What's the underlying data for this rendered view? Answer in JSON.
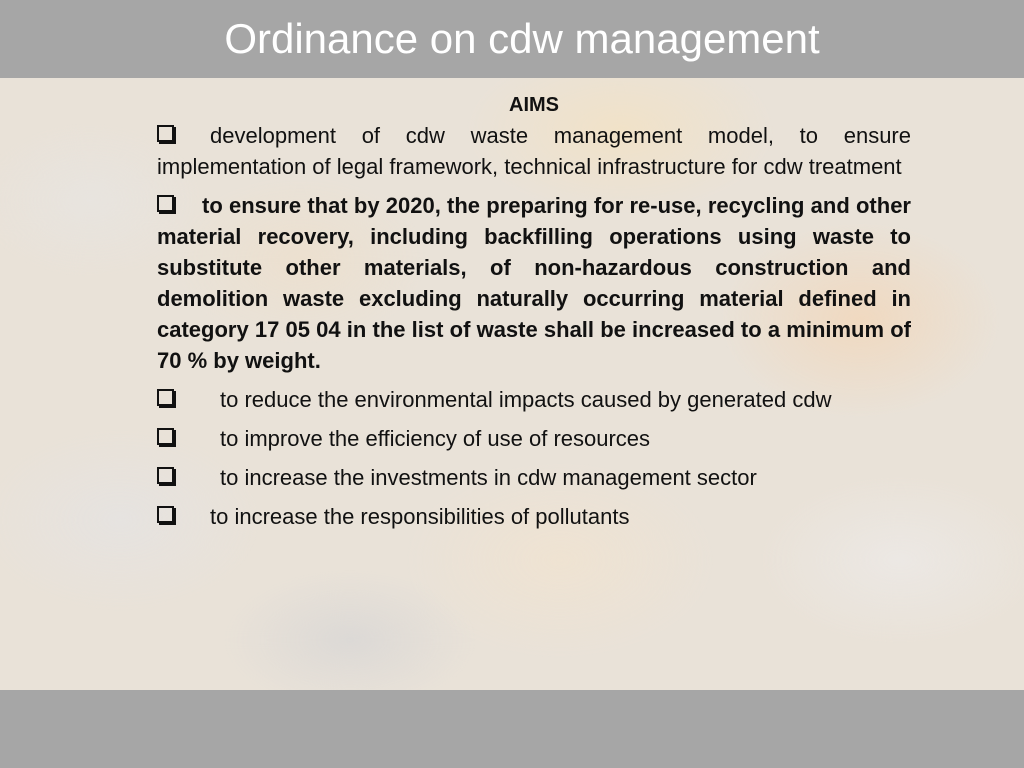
{
  "slide": {
    "title": "Ordinance on cdw management",
    "heading": "AIMS",
    "bullet_icon": "checkbox-square-icon",
    "items": [
      {
        "text": "development of cdw waste management model, to ensure implementation of legal framework,  technical infrastructure for cdw treatment",
        "bold": false
      },
      {
        "text": "to ensure that by 2020, the preparing for re-use, recycling and other material recovery, including backfilling operations using waste to substitute other materials, of non-hazardous construction and demolition waste excluding naturally occurring material defined in category 17 05 04 in the list of waste shall be increased to a minimum of 70 % by weight.",
        "bold": true
      },
      {
        "text": "to reduce the environmental impacts caused by generated cdw",
        "bold": false
      },
      {
        "text": "to improve the efficiency of use of resources",
        "bold": false
      },
      {
        "text": "to increase the investments in cdw management sector",
        "bold": false
      },
      {
        "text": "to increase the responsibilities of pollutants",
        "bold": false
      }
    ]
  }
}
